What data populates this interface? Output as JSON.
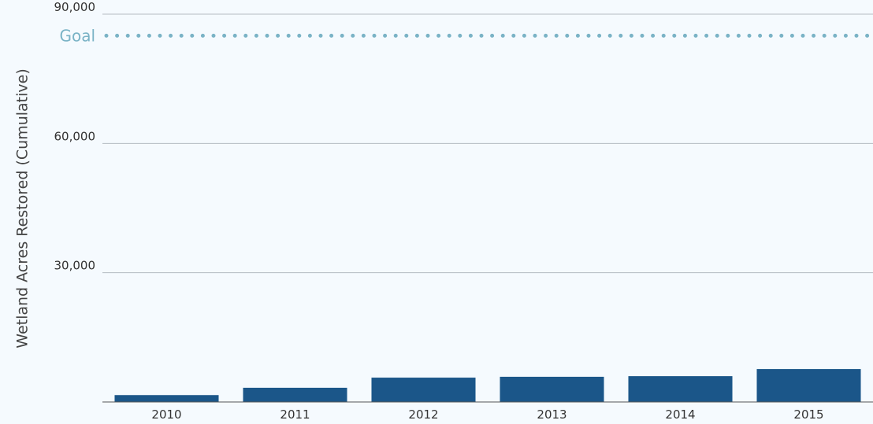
{
  "chart_data": {
    "type": "bar",
    "y_label": "Wetland Acres Restored (Cumulative)",
    "categories": [
      "2010",
      "2011",
      "2012",
      "2013",
      "2014",
      "2015"
    ],
    "values": [
      1600,
      3300,
      5650,
      5850,
      6000,
      7650
    ],
    "color": "#1b5689",
    "ylim": [
      0,
      90000
    ],
    "yticks": [
      {
        "value": 30000,
        "label": "30,000"
      },
      {
        "value": 60000,
        "label": "60,000"
      },
      {
        "value": 90000,
        "label": "90,000"
      }
    ],
    "grid": true,
    "goal": {
      "label": "Goal",
      "value": 85000,
      "color": "#7ab3c6"
    }
  }
}
